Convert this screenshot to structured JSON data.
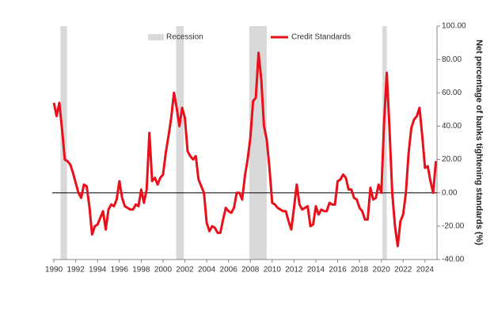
{
  "chart_data": {
    "type": "line",
    "y_label": "Net percentage of banks tightening standards (%)",
    "recession_label": "Recession",
    "recession_color": "#d9d9d9",
    "recessions": [
      [
        1990.6,
        1991.2
      ],
      [
        2001.2,
        2001.9
      ],
      [
        2007.9,
        2009.5
      ],
      [
        2020.1,
        2020.5
      ]
    ],
    "legend": "top",
    "xlim": [
      1989.85,
      2025.1
    ],
    "xticks": [
      1990,
      1992,
      1994,
      1996,
      1998,
      2000,
      2002,
      2004,
      2006,
      2008,
      2010,
      2012,
      2014,
      2016,
      2018,
      2020,
      2022,
      2024
    ],
    "ylim": [
      -40,
      100
    ],
    "yticks": [
      {
        "value": -40,
        "label": "-40.00"
      },
      {
        "value": -20,
        "label": "-20.00"
      },
      {
        "value": 0,
        "label": "0.00"
      },
      {
        "value": 20,
        "label": "20.00"
      },
      {
        "value": 40,
        "label": "40.00"
      },
      {
        "value": 60,
        "label": "60.00"
      },
      {
        "value": 80,
        "label": "80.00"
      },
      {
        "value": 100,
        "label": "100.00"
      }
    ],
    "x": [
      1990,
      1990.25,
      1990.5,
      1990.75,
      1991,
      1991.25,
      1991.5,
      1991.75,
      1992,
      1992.25,
      1992.5,
      1992.75,
      1993,
      1993.25,
      1993.5,
      1993.75,
      1994,
      1994.25,
      1994.5,
      1994.75,
      1995,
      1995.25,
      1995.5,
      1995.75,
      1996,
      1996.25,
      1996.5,
      1996.75,
      1997,
      1997.25,
      1997.5,
      1997.75,
      1998,
      1998.25,
      1998.5,
      1998.75,
      1999,
      1999.25,
      1999.5,
      1999.75,
      2000,
      2000.25,
      2000.5,
      2000.75,
      2001,
      2001.25,
      2001.5,
      2001.75,
      2002,
      2002.25,
      2002.5,
      2002.75,
      2003,
      2003.25,
      2003.5,
      2003.75,
      2004,
      2004.25,
      2004.5,
      2004.75,
      2005,
      2005.25,
      2005.5,
      2005.75,
      2006,
      2006.25,
      2006.5,
      2006.75,
      2007,
      2007.25,
      2007.5,
      2007.75,
      2008,
      2008.25,
      2008.5,
      2008.75,
      2009,
      2009.25,
      2009.5,
      2009.75,
      2010,
      2010.25,
      2010.5,
      2010.75,
      2011,
      2011.25,
      2011.5,
      2011.75,
      2012,
      2012.25,
      2012.5,
      2012.75,
      2013,
      2013.25,
      2013.5,
      2013.75,
      2014,
      2014.25,
      2014.5,
      2014.75,
      2015,
      2015.25,
      2015.5,
      2015.75,
      2016,
      2016.25,
      2016.5,
      2016.75,
      2017,
      2017.25,
      2017.5,
      2017.75,
      2018,
      2018.25,
      2018.5,
      2018.75,
      2019,
      2019.25,
      2019.5,
      2019.75,
      2020,
      2020.25,
      2020.5,
      2020.75,
      2021,
      2021.25,
      2021.5,
      2021.75,
      2022,
      2022.25,
      2022.5,
      2022.75,
      2023,
      2023.25,
      2023.5,
      2023.75,
      2024,
      2024.25,
      2024.5,
      2024.75,
      2025
    ],
    "series": [
      {
        "name": "Credit Standards",
        "color": "#e8101a",
        "values": [
          54,
          46,
          54,
          38,
          20,
          19,
          17,
          12,
          6,
          0,
          -3,
          5,
          4,
          -8,
          -25,
          -20,
          -19,
          -15,
          -11,
          -22,
          -10,
          -7,
          -8,
          -4,
          7,
          -3,
          -8,
          -9,
          -10,
          -10,
          -7,
          -8,
          2,
          -6,
          2,
          36,
          7,
          9,
          5,
          9,
          11,
          24,
          34,
          45,
          60,
          51,
          40,
          51,
          45,
          25,
          22,
          20,
          22,
          8,
          4,
          0,
          -18,
          -23,
          -20,
          -21,
          -24,
          -24,
          -16,
          -9,
          -11,
          -12,
          -9,
          0,
          0,
          -4,
          10,
          20,
          33,
          55,
          57,
          84,
          68,
          40,
          32,
          15,
          -6,
          -7,
          -9,
          -10,
          -11,
          -11,
          -17,
          -22,
          -9,
          5,
          -7,
          -10,
          -9,
          -8,
          -20,
          -19,
          -8,
          -13,
          -10,
          -11,
          -11,
          -6,
          -7,
          -7,
          7,
          8,
          11,
          9,
          2,
          2,
          -3,
          -4,
          -9,
          -11,
          -16,
          -16,
          3,
          -4,
          -3,
          5,
          0,
          42,
          72,
          38,
          0,
          -20,
          -32,
          -17,
          -13,
          0,
          24,
          39,
          44,
          46,
          51,
          34,
          15,
          16,
          7,
          0,
          19
        ]
      }
    ]
  }
}
